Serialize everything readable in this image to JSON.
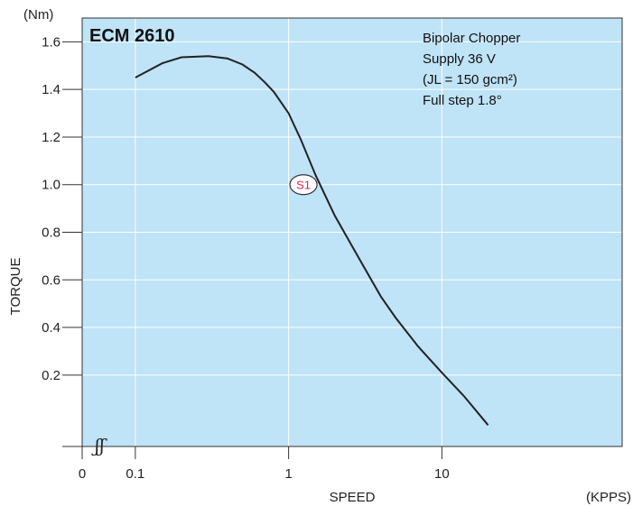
{
  "chart_data": {
    "type": "line",
    "title": "ECM 2610",
    "annotations": [
      "Bipolar Chopper",
      "Supply 36 V",
      "(JL = 150 gcm²)",
      "Full step 1.8°"
    ],
    "ylabel": "TORQUE",
    "yunit": "(Nm)",
    "xlabel": "SPEED",
    "xunit": "(KPPS)",
    "xscale": "log",
    "xlim": [
      0.045,
      150
    ],
    "ylim": [
      -0.1,
      1.7
    ],
    "x_ticks": [
      {
        "value": 0.1,
        "label": "0.1"
      },
      {
        "value": 1,
        "label": "1"
      },
      {
        "value": 10,
        "label": "10"
      }
    ],
    "x_zero_label": "0",
    "y_ticks": [
      {
        "value": 0.2,
        "label": "0.2"
      },
      {
        "value": 0.4,
        "label": "0.4"
      },
      {
        "value": 0.6,
        "label": "0.6"
      },
      {
        "value": 0.8,
        "label": "0.8"
      },
      {
        "value": 1.0,
        "label": "1.0"
      },
      {
        "value": 1.2,
        "label": "1.2"
      },
      {
        "value": 1.4,
        "label": "1.4"
      },
      {
        "value": 1.6,
        "label": "1.6"
      }
    ],
    "grid": true,
    "background_color": "#bfe3f7",
    "line_color": "#222222",
    "callout": {
      "label": "S1",
      "x": 1.25,
      "y": 1.0,
      "color": "#e0245e"
    },
    "series": [
      {
        "x": [
          0.1,
          0.15,
          0.2,
          0.3,
          0.4,
          0.5,
          0.6,
          0.7,
          0.8,
          1.0,
          1.2,
          1.5,
          2.0,
          2.5,
          3.0,
          4.0,
          5.0,
          7.0,
          10.0,
          14.0,
          20.0
        ],
        "y": [
          1.45,
          1.51,
          1.535,
          1.54,
          1.53,
          1.505,
          1.47,
          1.43,
          1.39,
          1.3,
          1.19,
          1.04,
          0.87,
          0.76,
          0.67,
          0.53,
          0.44,
          0.32,
          0.21,
          0.11,
          -0.01
        ]
      }
    ],
    "axis_break_symbol": "ʃʃ"
  }
}
